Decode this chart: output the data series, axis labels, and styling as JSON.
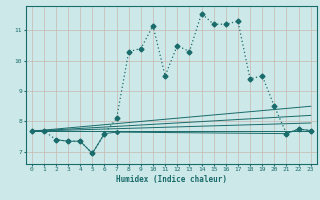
{
  "xlabel": "Humidex (Indice chaleur)",
  "bg_color": "#cce8e8",
  "grid_color": "#c8b8b0",
  "line_color": "#1a6b6b",
  "xlim": [
    -0.5,
    23.5
  ],
  "ylim": [
    6.6,
    11.8
  ],
  "xticks": [
    0,
    1,
    2,
    3,
    4,
    5,
    6,
    7,
    8,
    9,
    10,
    11,
    12,
    13,
    14,
    15,
    16,
    17,
    18,
    19,
    20,
    21,
    22,
    23
  ],
  "yticks": [
    7,
    8,
    9,
    10,
    11
  ],
  "main_line": {
    "x": [
      0,
      1,
      2,
      3,
      4,
      5,
      6,
      7,
      8,
      9,
      10,
      11,
      12,
      13,
      14,
      15,
      16,
      17,
      18,
      19,
      20,
      21,
      22,
      23
    ],
    "y": [
      7.7,
      7.7,
      7.4,
      7.35,
      7.35,
      6.95,
      7.6,
      8.1,
      10.3,
      10.4,
      11.15,
      9.5,
      10.5,
      10.3,
      11.55,
      11.2,
      11.2,
      11.3,
      9.4,
      9.5,
      8.5,
      7.6,
      7.75,
      7.7
    ]
  },
  "trend_lines": [
    {
      "x0": 0,
      "y0": 7.68,
      "x1": 23,
      "y1": 7.68
    },
    {
      "x0": 0,
      "y0": 7.68,
      "x1": 23,
      "y1": 7.95
    },
    {
      "x0": 0,
      "y0": 7.68,
      "x1": 23,
      "y1": 8.2
    },
    {
      "x0": 0,
      "y0": 7.68,
      "x1": 23,
      "y1": 8.5
    }
  ],
  "lower_line": {
    "x": [
      2,
      3,
      4,
      5,
      6,
      7,
      21,
      22,
      23
    ],
    "y": [
      7.4,
      7.35,
      7.35,
      6.95,
      7.6,
      7.65,
      7.6,
      7.75,
      7.7
    ]
  }
}
